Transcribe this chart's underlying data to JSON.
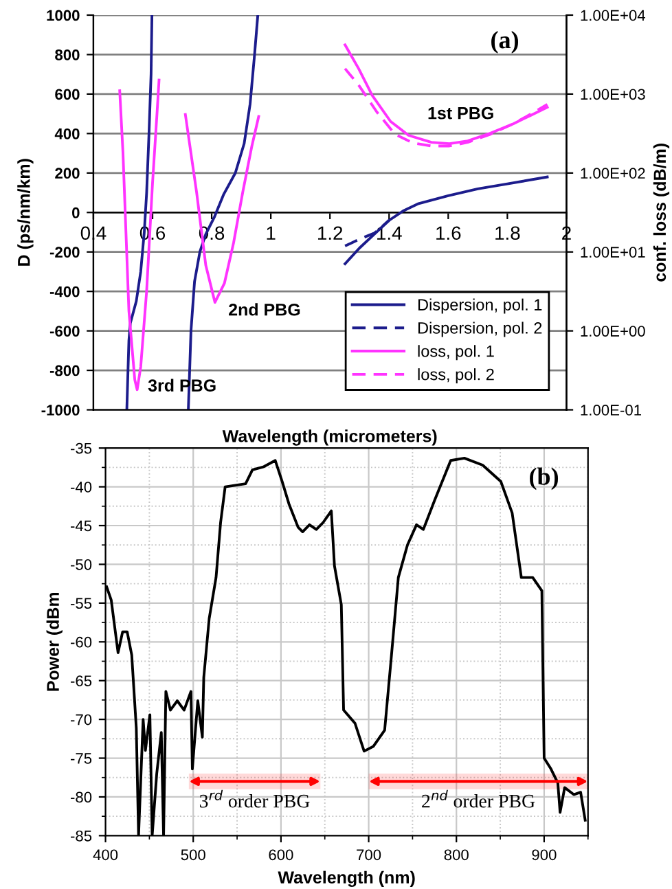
{
  "chart_data": [
    {
      "type": "line",
      "xlabel": "Wavelength (micrometers)",
      "ylabel": "D (ps/nm/km)",
      "y2label": "conf. loss (dB/m)",
      "xlim": [
        0.4,
        2
      ],
      "xticks": [
        0.4,
        0.6,
        0.8,
        1,
        1.2,
        1.4,
        1.6,
        1.8,
        2
      ],
      "ylim": [
        -1000,
        1000
      ],
      "yticks": [
        -1000,
        -800,
        -600,
        -400,
        -200,
        0,
        200,
        400,
        600,
        800,
        1000
      ],
      "y2lim": [
        0.1,
        10000
      ],
      "y2ticks": [
        {
          "value": 0.1,
          "label": "1.00E-01"
        },
        {
          "value": 1,
          "label": "1.00E+00"
        },
        {
          "value": 10,
          "label": "1.00E+01"
        },
        {
          "value": 100,
          "label": "1.00E+02"
        },
        {
          "value": 1000,
          "label": "1.00E+03"
        },
        {
          "value": 10000,
          "label": "1.00E+04"
        }
      ],
      "log": "y2",
      "grid": "y",
      "legend": "bottom right",
      "series": [
        {
          "name": "Dispersion, pol. 1",
          "color": "#1c1c8c",
          "line_style": "solid",
          "x": [
            0.513,
            0.52,
            0.525,
            0.545,
            0.56,
            0.572,
            0.58,
            0.588,
            0.595,
            0.598,
            0.65,
            0.721,
            0.73,
            0.742,
            0.76,
            0.78,
            0.81,
            0.84,
            0.88,
            0.91,
            0.93,
            0.945,
            0.956,
            1.1,
            1.251,
            1.3,
            1.35,
            1.4,
            1.45,
            1.5,
            1.6,
            1.7,
            1.8,
            1.935
          ],
          "values": [
            -1000,
            -650,
            -560,
            -450,
            -300,
            -100,
            100,
            400,
            700,
            1000,
            null,
            -1000,
            -600,
            -350,
            -200,
            -110,
            -20,
            90,
            200,
            350,
            550,
            800,
            1000,
            null,
            -260,
            -180,
            -110,
            -40,
            10,
            45,
            85,
            120,
            145,
            180
          ]
        },
        {
          "name": "Dispersion, pol. 2",
          "color": "#1c1c8c",
          "line_style": "dashed",
          "x": [
            1.251,
            1.3,
            1.35,
            1.4
          ],
          "values": [
            -170,
            -135,
            -105,
            -40
          ]
        },
        {
          "name": "loss, pol. 1",
          "color": "#ff33ff",
          "line_style": "solid",
          "axis": "y2",
          "x": [
            0.489,
            0.5,
            0.52,
            0.54,
            0.548,
            0.56,
            0.58,
            0.6,
            0.615,
            0.622,
            0.66,
            0.711,
            0.749,
            0.78,
            0.811,
            0.843,
            0.874,
            0.905,
            0.936,
            0.959,
            1.1,
            1.251,
            1.297,
            1.343,
            1.405,
            1.466,
            1.543,
            1.604,
            1.666,
            1.743,
            1.82,
            1.88,
            1.935
          ],
          "values": [
            1100,
            180,
            1.8,
            0.24,
            0.18,
            0.35,
            3.2,
            75,
            560,
            1500,
            null,
            550,
            57,
            6.8,
            2.3,
            4,
            13,
            57,
            220,
            520,
            null,
            4200,
            2100,
            960,
            450,
            300,
            245,
            235,
            255,
            320,
            420,
            540,
            680
          ]
        },
        {
          "name": "loss, pol. 2",
          "color": "#ff33ff",
          "line_style": "dashed",
          "axis": "y2",
          "x": [
            1.251,
            1.297,
            1.359,
            1.42,
            1.481,
            1.543,
            1.604,
            1.666,
            1.743,
            1.82,
            1.88,
            1.935
          ],
          "values": [
            2100,
            1300,
            590,
            310,
            240,
            220,
            220,
            245,
            310,
            420,
            560,
            740
          ]
        }
      ],
      "annotations": [
        "(a)",
        "1st PBG",
        "2nd PBG",
        "3rd PBG"
      ]
    },
    {
      "type": "line",
      "xlabel": "Wavelength (nm)",
      "ylabel": "Power (dBm",
      "xlim": [
        400,
        950
      ],
      "xticks": [
        400,
        500,
        600,
        700,
        800,
        900
      ],
      "ylim": [
        -85,
        -35
      ],
      "yticks": [
        -85,
        -80,
        -75,
        -70,
        -65,
        -60,
        -55,
        -50,
        -45,
        -40,
        -35
      ],
      "grid": true,
      "series": [
        {
          "color": "#000000",
          "x": [
            401.3,
            406.5,
            414.3,
            419.5,
            424.7,
            429.9,
            435.1,
            437.7,
            442.9,
            445.5,
            450.6,
            453.2,
            458.4,
            463.6,
            466.2,
            468.8,
            474,
            481.8,
            489.6,
            497.4,
            499,
            505.2,
            510.4,
            512,
            518.2,
            526,
            531.2,
            536.4,
            559.7,
            567.5,
            580.5,
            593.5,
            601.3,
            609.1,
            619.5,
            624.7,
            632.5,
            640.3,
            648.1,
            657.4,
            661,
            668.8,
            671.4,
            684.4,
            694.8,
            705.2,
            718.2,
            726,
            733.8,
            744.2,
            754.5,
            762.3,
            775.3,
            793.5,
            809.1,
            829.9,
            850.6,
            863.6,
            874,
            887,
            897.4,
            900,
            907.8,
            915.6,
            918.2,
            923.4,
            933.8,
            941.6,
            946.8
          ],
          "values": [
            -52.9,
            -54.6,
            -61.4,
            -58.7,
            -58.7,
            -61.7,
            -71.1,
            -85,
            -70,
            -74,
            -69.4,
            -85,
            -77,
            -71.7,
            -85,
            -66.4,
            -68.8,
            -67.6,
            -68.8,
            -66.4,
            -76.4,
            -67.6,
            -72.3,
            -64.6,
            -57,
            -51.7,
            -44.6,
            -40,
            -39.6,
            -37.8,
            -37.4,
            -36.6,
            -39.3,
            -42.2,
            -45.2,
            -45.8,
            -44.9,
            -45.5,
            -44.6,
            -43.1,
            -50.2,
            -55.2,
            -68.8,
            -70.5,
            -74.1,
            -73.5,
            -71.4,
            -61.7,
            -51.7,
            -47.5,
            -44.9,
            -45.5,
            -41.7,
            -36.6,
            -36.3,
            -37.2,
            -39.3,
            -43.4,
            -51.7,
            -51.7,
            -53.4,
            -75,
            -76.4,
            -78.2,
            -82,
            -78.8,
            -79.7,
            -79.4,
            -83
          ]
        }
      ],
      "bands": [
        {
          "axis": "x",
          "from": 495,
          "to": 645,
          "label": "3$^{rd}$ order PBG",
          "color": "#ff0000"
        },
        {
          "axis": "x",
          "from": 700,
          "to": 950,
          "label": "2$^{nd}$ order PBG",
          "color": "#ff0000"
        }
      ],
      "annotations": [
        "(b)"
      ]
    }
  ]
}
